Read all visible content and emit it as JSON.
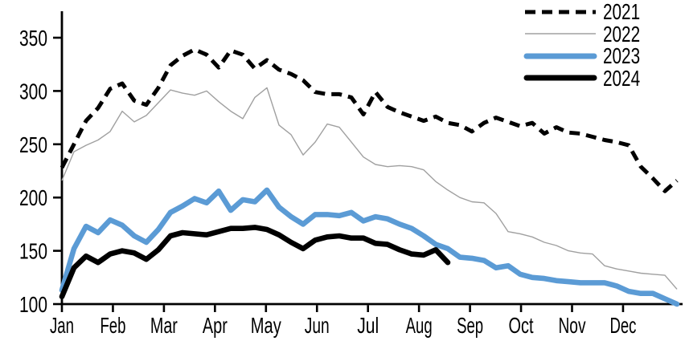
{
  "chart_data": {
    "type": "line",
    "title": "",
    "xlabel": "",
    "ylabel": "",
    "sampling": "weekly",
    "x_axis": {
      "tick_labels": [
        "Jan",
        "Feb",
        "Mar",
        "Apr",
        "May",
        "Jun",
        "Jul",
        "Aug",
        "Sep",
        "Oct",
        "Nov",
        "Dec"
      ]
    },
    "y_axis": {
      "ticks": [
        100,
        150,
        200,
        250,
        300,
        350
      ],
      "range": [
        100,
        374
      ],
      "grid": false
    },
    "legend_position": "top-right",
    "series": [
      {
        "name": "2021",
        "color": "#000000",
        "line_style": "dashed",
        "values": [
          228,
          250,
          272,
          284,
          302,
          307,
          291,
          287,
          303,
          324,
          333,
          339,
          334,
          322,
          338,
          334,
          321,
          329,
          320,
          316,
          310,
          299,
          297,
          297,
          294,
          278,
          299,
          285,
          280,
          276,
          272,
          276,
          270,
          268,
          262,
          270,
          275,
          271,
          267,
          270,
          260,
          266,
          261,
          260,
          257,
          254,
          252,
          249,
          229,
          218,
          206,
          216
        ]
      },
      {
        "name": "2022",
        "color": "#a0a0a0",
        "line_style": "thin",
        "values": [
          216,
          243,
          249,
          254,
          262,
          281,
          271,
          277,
          289,
          301,
          298,
          296,
          300,
          290,
          281,
          274,
          294,
          303,
          268,
          259,
          240,
          252,
          269,
          266,
          252,
          238,
          231,
          229,
          230,
          229,
          226,
          215,
          207,
          200,
          196,
          195,
          185,
          168,
          166,
          163,
          158,
          155,
          150,
          148,
          147,
          136,
          133,
          131,
          129,
          128,
          127,
          114
        ]
      },
      {
        "name": "2023",
        "color": "#5b9bd5",
        "line_style": "bold",
        "values": [
          113,
          152,
          173,
          167,
          179,
          174,
          164,
          158,
          170,
          186,
          192,
          199,
          195,
          206,
          188,
          198,
          196,
          207,
          191,
          182,
          175,
          184,
          184,
          183,
          186,
          178,
          182,
          180,
          175,
          171,
          164,
          156,
          152,
          144,
          143,
          141,
          134,
          136,
          128,
          125,
          124,
          122,
          121,
          120,
          120,
          120,
          117,
          112,
          110,
          110,
          105,
          100
        ]
      },
      {
        "name": "2024",
        "color": "#000000",
        "line_style": "bold",
        "values": [
          107,
          134,
          145,
          139,
          147,
          150,
          148,
          142,
          151,
          164,
          167,
          166,
          165,
          168,
          171,
          171,
          172,
          170,
          165,
          158,
          152,
          160,
          163,
          164,
          162,
          162,
          157,
          156,
          151,
          147,
          146,
          151,
          139
        ]
      }
    ]
  }
}
